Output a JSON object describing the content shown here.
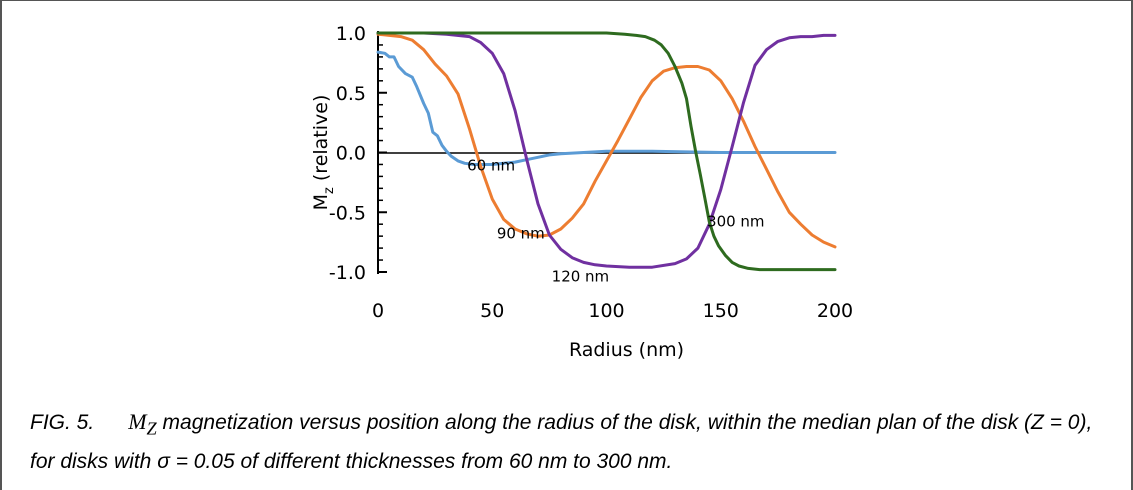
{
  "chart_data": {
    "type": "line",
    "xlabel": "Radius (nm)",
    "ylabel_main": "M",
    "ylabel_sub": "z",
    "ylabel_rest": " (relative)",
    "xlim": [
      0,
      200
    ],
    "ylim": [
      -1.05,
      1.05
    ],
    "xticks": [
      0,
      50,
      100,
      150,
      200
    ],
    "xtick_labels": [
      "0",
      "50",
      "100",
      "150",
      "200"
    ],
    "yticks": [
      1.0,
      0.5,
      0.0,
      -0.5,
      -1.0
    ],
    "ytick_labels": [
      "1.0",
      "0.5",
      "0.0",
      "-0.5",
      "-1.0"
    ],
    "grid": false,
    "legend": "none (inline labels)",
    "series": [
      {
        "name": "60 nm",
        "color": "#5b9bd5",
        "x": [
          0,
          3,
          5,
          7,
          9,
          12,
          15,
          17,
          20,
          22,
          24,
          26,
          28,
          30,
          32,
          35,
          38,
          42,
          46,
          50,
          55,
          60,
          65,
          70,
          75,
          80,
          90,
          100,
          120,
          150,
          200
        ],
        "y": [
          0.84,
          0.83,
          0.8,
          0.8,
          0.72,
          0.66,
          0.63,
          0.55,
          0.41,
          0.33,
          0.17,
          0.14,
          0.06,
          0.01,
          -0.03,
          -0.07,
          -0.09,
          -0.1,
          -0.1,
          -0.1,
          -0.09,
          -0.08,
          -0.06,
          -0.04,
          -0.02,
          -0.01,
          0.0,
          0.01,
          0.01,
          0.0,
          0.0
        ]
      },
      {
        "name": "90 nm",
        "color": "#ed7d31",
        "x": [
          0,
          10,
          15,
          20,
          25,
          30,
          35,
          40,
          45,
          50,
          55,
          60,
          65,
          70,
          75,
          80,
          85,
          90,
          95,
          100,
          105,
          110,
          115,
          120,
          125,
          130,
          135,
          140,
          145,
          150,
          155,
          160,
          165,
          170,
          175,
          180,
          185,
          190,
          195,
          200
        ],
        "y": [
          0.99,
          0.97,
          0.94,
          0.86,
          0.74,
          0.64,
          0.49,
          0.2,
          -0.12,
          -0.39,
          -0.56,
          -0.64,
          -0.68,
          -0.7,
          -0.69,
          -0.64,
          -0.55,
          -0.43,
          -0.24,
          -0.07,
          0.1,
          0.28,
          0.46,
          0.6,
          0.68,
          0.71,
          0.72,
          0.72,
          0.69,
          0.6,
          0.45,
          0.26,
          0.05,
          -0.14,
          -0.33,
          -0.5,
          -0.6,
          -0.69,
          -0.75,
          -0.79
        ]
      },
      {
        "name": "120 nm",
        "color": "#7030a0",
        "x": [
          0,
          20,
          30,
          40,
          45,
          50,
          55,
          60,
          65,
          70,
          75,
          80,
          85,
          90,
          95,
          100,
          110,
          120,
          130,
          135,
          140,
          145,
          150,
          155,
          160,
          165,
          170,
          175,
          180,
          185,
          190,
          195,
          200
        ],
        "y": [
          1.0,
          1.0,
          0.99,
          0.97,
          0.92,
          0.83,
          0.66,
          0.35,
          -0.05,
          -0.43,
          -0.69,
          -0.81,
          -0.88,
          -0.92,
          -0.94,
          -0.95,
          -0.96,
          -0.96,
          -0.93,
          -0.89,
          -0.8,
          -0.6,
          -0.31,
          0.05,
          0.42,
          0.73,
          0.86,
          0.93,
          0.96,
          0.97,
          0.97,
          0.98,
          0.98
        ]
      },
      {
        "name": "300 nm",
        "color": "#2e6b1f",
        "x": [
          0,
          50,
          90,
          100,
          108,
          113,
          117,
          121,
          124,
          127,
          130,
          133,
          135,
          137,
          139,
          141,
          143,
          145,
          147,
          149,
          152,
          155,
          158,
          162,
          167,
          175,
          185,
          200
        ],
        "y": [
          1.0,
          1.0,
          1.0,
          1.0,
          0.99,
          0.98,
          0.97,
          0.94,
          0.9,
          0.83,
          0.72,
          0.58,
          0.45,
          0.22,
          0.01,
          -0.18,
          -0.38,
          -0.58,
          -0.7,
          -0.78,
          -0.86,
          -0.92,
          -0.95,
          -0.97,
          -0.98,
          -0.98,
          -0.98,
          -0.98
        ]
      }
    ],
    "annotations": [
      {
        "text": "60 nm",
        "x": 39,
        "y": 0.0
      },
      {
        "text": "90 nm",
        "x": 52,
        "y": -0.57
      },
      {
        "text": "120 nm",
        "x": 76,
        "y": -0.93
      },
      {
        "text": "300 nm",
        "x": 144,
        "y": -0.47
      }
    ]
  },
  "caption": {
    "fig_num": "FIG. 5.",
    "mz_main": "M",
    "mz_sub": "Z",
    "text": " magnetization versus position along the radius of the disk, within the median plan of the disk (Z = 0), for disks with σ = 0.05 of different thicknesses from 60 nm to 300 nm."
  }
}
